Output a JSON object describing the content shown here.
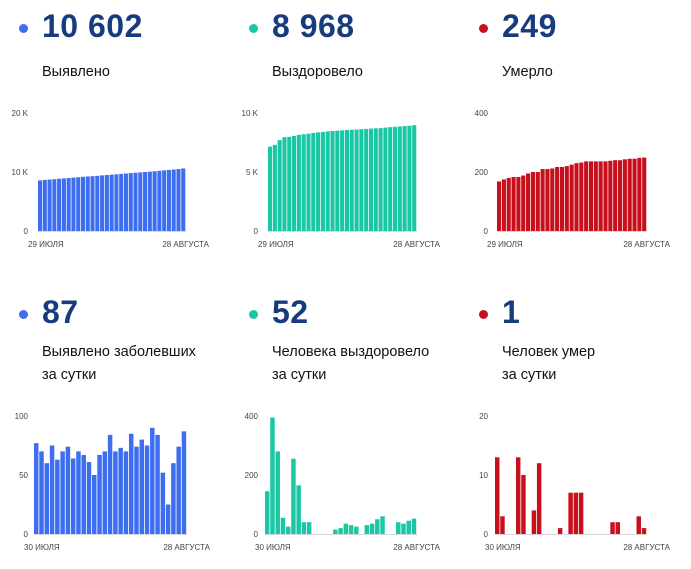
{
  "colors": {
    "blue": "#3e6ef0",
    "green": "#19c7a3",
    "red": "#c8101d",
    "number": "#173c7d"
  },
  "panels": [
    {
      "id": "detected-total",
      "color": "blue",
      "number": "10 602",
      "label": [
        "Выявлено"
      ]
    },
    {
      "id": "recovered-total",
      "color": "green",
      "number": "8 968",
      "label": [
        "Выздоровело"
      ]
    },
    {
      "id": "deaths-total",
      "color": "red",
      "number": "249",
      "label": [
        "Умерло"
      ]
    },
    {
      "id": "detected-daily",
      "color": "blue",
      "number": "87",
      "label": [
        "Выявлено заболевших",
        "за сутки"
      ]
    },
    {
      "id": "recovered-daily",
      "color": "green",
      "number": "52",
      "label": [
        "Человека выздоровело",
        "за сутки"
      ]
    },
    {
      "id": "deaths-daily",
      "color": "red",
      "number": "1",
      "label": [
        "Человек умер",
        "за сутки"
      ]
    }
  ],
  "chart_data": [
    {
      "type": "bar",
      "panel": "detected-total",
      "color": "blue",
      "ylim": [
        0,
        20000
      ],
      "yticks": [
        0,
        10000,
        20000
      ],
      "ytick_labels": [
        "0",
        "10 K",
        "20 K"
      ],
      "xtick_labels": [
        "29 ИЮЛЯ",
        "28 АВГУСТА"
      ],
      "values": [
        8570,
        8660,
        8720,
        8780,
        8860,
        8920,
        8980,
        9050,
        9110,
        9180,
        9240,
        9290,
        9350,
        9420,
        9490,
        9550,
        9610,
        9670,
        9740,
        9810,
        9880,
        9940,
        10000,
        10060,
        10120,
        10200,
        10280,
        10350,
        10420,
        10500,
        10602
      ]
    },
    {
      "type": "bar",
      "panel": "recovered-total",
      "color": "green",
      "ylim": [
        0,
        10000
      ],
      "yticks": [
        0,
        5000,
        10000
      ],
      "ytick_labels": [
        "0",
        "5 K",
        "10 K"
      ],
      "xtick_labels": [
        "29 ИЮЛЯ",
        "28 АВГУСТА"
      ],
      "values": [
        7150,
        7300,
        7700,
        7950,
        7980,
        8050,
        8150,
        8200,
        8250,
        8310,
        8360,
        8400,
        8440,
        8470,
        8500,
        8530,
        8560,
        8580,
        8600,
        8620,
        8650,
        8680,
        8700,
        8720,
        8760,
        8800,
        8830,
        8860,
        8890,
        8916,
        8968
      ]
    },
    {
      "type": "bar",
      "panel": "deaths-total",
      "color": "red",
      "ylim": [
        0,
        400
      ],
      "yticks": [
        0,
        200,
        400
      ],
      "ytick_labels": [
        "0",
        "200",
        ""
      ],
      "top_label": "400",
      "xtick_labels": [
        "29 ИЮЛЯ",
        "28 АВГУСТА"
      ],
      "values": [
        168,
        175,
        180,
        183,
        183,
        188,
        195,
        200,
        200,
        210,
        210,
        212,
        217,
        217,
        220,
        225,
        230,
        232,
        236,
        236,
        236,
        236,
        236,
        238,
        240,
        240,
        243,
        245,
        245,
        248,
        249
      ]
    },
    {
      "type": "bar",
      "panel": "detected-daily",
      "color": "blue",
      "ylim": [
        0,
        100
      ],
      "yticks": [
        0,
        50,
        100
      ],
      "ytick_labels": [
        "0",
        "50",
        "100"
      ],
      "xtick_labels": [
        "30 ИЮЛЯ",
        "28 АВГУСТА"
      ],
      "values": [
        77,
        70,
        60,
        75,
        63,
        70,
        74,
        64,
        70,
        67,
        61,
        50,
        67,
        70,
        84,
        70,
        73,
        70,
        85,
        74,
        80,
        75,
        90,
        84,
        52,
        25,
        60,
        74,
        87
      ]
    },
    {
      "type": "bar",
      "panel": "recovered-daily",
      "color": "green",
      "ylim": [
        0,
        400
      ],
      "yticks": [
        0,
        200,
        400
      ],
      "ytick_labels": [
        "0",
        "200",
        "400"
      ],
      "xtick_labels": [
        "30 ИЮЛЯ",
        "28 АВГУСТА"
      ],
      "values": [
        145,
        395,
        280,
        55,
        25,
        255,
        165,
        40,
        40,
        0,
        0,
        0,
        0,
        15,
        20,
        35,
        30,
        25,
        0,
        30,
        35,
        50,
        60,
        0,
        0,
        40,
        35,
        45,
        52
      ]
    },
    {
      "type": "bar",
      "panel": "deaths-daily",
      "color": "red",
      "ylim": [
        0,
        20
      ],
      "yticks": [
        0,
        10,
        20
      ],
      "ytick_labels": [
        "0",
        "10",
        "20"
      ],
      "xtick_labels": [
        "30 ИЮЛЯ",
        "28 АВГУСТА"
      ],
      "values": [
        13,
        3,
        0,
        0,
        13,
        10,
        0,
        4,
        12,
        0,
        0,
        0,
        1,
        0,
        7,
        7,
        7,
        0,
        0,
        0,
        0,
        0,
        2,
        2,
        0,
        0,
        0,
        3,
        1
      ]
    }
  ]
}
